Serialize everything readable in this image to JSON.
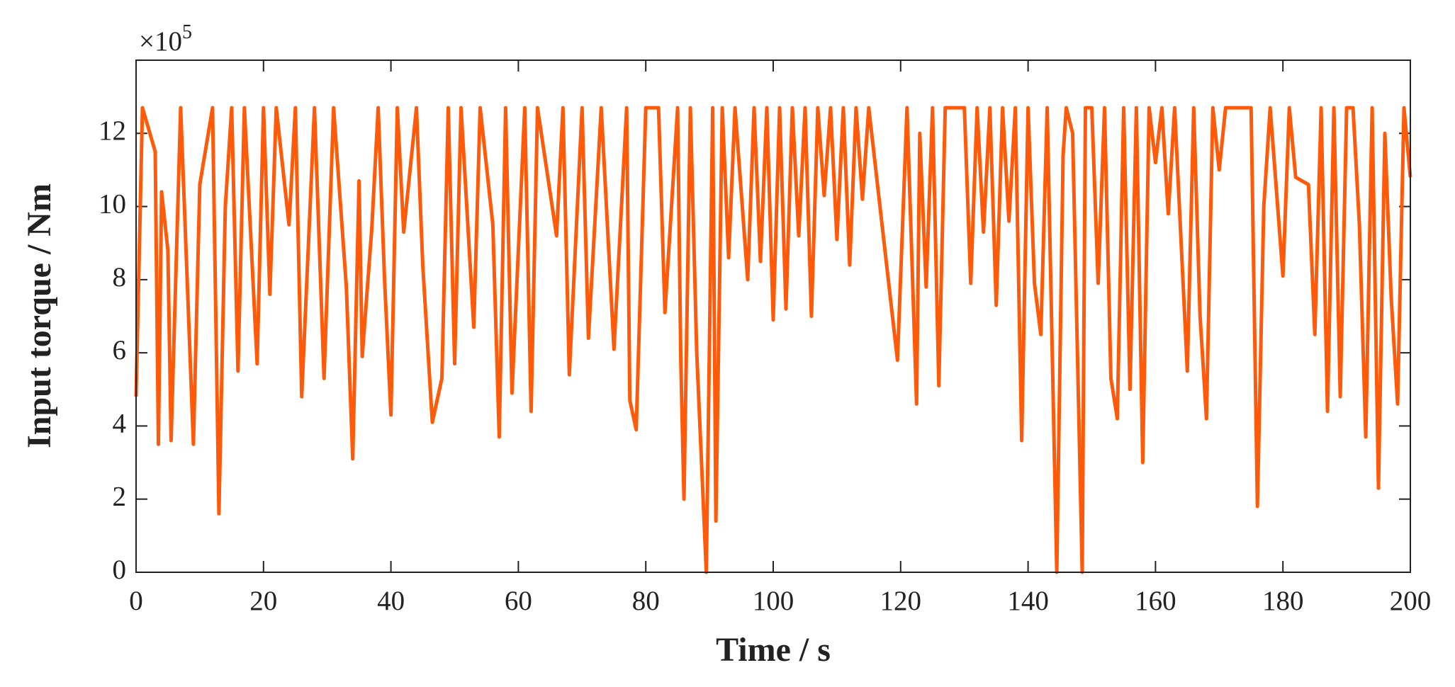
{
  "chart_data": {
    "type": "line",
    "xlabel": "Time / s",
    "ylabel": "Input torque / Nm",
    "y_multiplier": {
      "base": "×10",
      "exponent": "5"
    },
    "xlim": [
      0,
      200
    ],
    "xticks": [
      0,
      20,
      40,
      60,
      80,
      100,
      120,
      140,
      160,
      180,
      200
    ],
    "ylim": [
      0,
      14
    ],
    "yticks": [
      0,
      2,
      4,
      6,
      8,
      10,
      12
    ],
    "grid": false,
    "series": [
      {
        "name": "Input torque",
        "color": "#ff5a0a",
        "x": [
          0,
          1,
          3,
          3.5,
          4,
          5,
          5.5,
          7,
          9,
          10,
          12,
          13,
          14,
          15,
          16,
          17,
          19,
          20,
          21,
          22,
          24,
          25,
          26,
          28,
          29.5,
          31,
          33,
          34,
          35,
          35.5,
          37,
          38,
          39,
          40,
          41,
          42,
          44,
          45,
          46.5,
          48,
          49,
          50,
          51,
          53,
          54,
          56,
          57,
          58,
          59,
          61,
          62,
          63,
          66,
          67,
          68,
          70,
          71,
          73,
          75,
          77,
          77.5,
          78.5,
          80,
          82,
          83,
          85,
          85.5,
          86,
          87,
          88,
          89.5,
          90.5,
          91,
          92,
          93,
          94,
          96,
          97,
          98,
          99,
          100,
          101,
          102,
          103,
          104,
          105,
          106,
          107,
          108,
          109,
          110,
          111,
          112,
          113,
          114,
          115,
          119.5,
          121,
          122.5,
          123,
          124,
          125,
          126,
          127,
          130,
          131,
          132,
          133,
          134,
          135,
          136,
          137,
          138,
          139,
          140,
          141,
          142,
          143,
          144.5,
          145.5,
          146,
          147,
          148.5,
          149,
          150,
          151,
          152,
          153,
          154,
          155,
          156,
          157,
          158,
          159,
          160,
          161,
          162,
          163,
          165,
          166,
          167,
          168,
          169,
          170,
          171,
          175,
          176,
          177,
          178,
          179,
          180,
          181,
          182,
          184,
          185,
          186,
          187,
          188,
          189,
          190,
          191,
          192,
          193,
          194,
          195,
          196,
          197,
          198,
          199,
          200
        ],
        "values": [
          4.8,
          12.7,
          11.5,
          3.5,
          10.4,
          8.8,
          3.6,
          12.7,
          3.5,
          10.6,
          12.7,
          1.6,
          10,
          12.7,
          5.5,
          12.7,
          5.7,
          12.7,
          7.6,
          12.7,
          9.5,
          12.7,
          4.8,
          12.7,
          5.3,
          12.7,
          7.8,
          3.1,
          10.7,
          5.9,
          9.4,
          12.7,
          8,
          4.3,
          12.7,
          9.3,
          12.7,
          8.4,
          4.1,
          5.3,
          12.7,
          5.7,
          12.7,
          6.7,
          12.7,
          9.5,
          3.7,
          12.7,
          4.9,
          12.7,
          4.4,
          12.7,
          9.2,
          12.7,
          5.4,
          12.7,
          6.4,
          12.7,
          6.1,
          12.7,
          4.7,
          3.9,
          12.7,
          12.7,
          7.1,
          12.7,
          5.8,
          2,
          12.7,
          6,
          0,
          12.7,
          1.4,
          12.7,
          8.6,
          12.7,
          8,
          12.7,
          8.5,
          12.7,
          6.9,
          12.7,
          7.2,
          12.7,
          9.2,
          12.7,
          7,
          12.7,
          10.3,
          12.7,
          9.1,
          12.7,
          8.4,
          12.7,
          10.2,
          12.7,
          5.8,
          12.7,
          4.6,
          12,
          7.8,
          12.7,
          5.1,
          12.7,
          12.7,
          7.9,
          12.7,
          9.3,
          12.7,
          7.3,
          12.7,
          9.6,
          12.7,
          3.6,
          12.7,
          7.9,
          6.5,
          12.7,
          0,
          11.4,
          12.7,
          12,
          0,
          12.7,
          12.7,
          7.9,
          12.7,
          5.3,
          4.2,
          12.7,
          5,
          12.7,
          3,
          12.7,
          11.2,
          12.7,
          9.8,
          12.7,
          5.5,
          12.7,
          7,
          4.2,
          12.7,
          11,
          12.7,
          12.7,
          1.8,
          10,
          12.7,
          10.4,
          8.1,
          12.7,
          10.8,
          10.6,
          6.5,
          12.7,
          4.4,
          12.7,
          4.8,
          12.7,
          12.7,
          9.5,
          3.7,
          12.7,
          2.3,
          12,
          7.5,
          4.6,
          12.7,
          10.8
        ]
      }
    ]
  }
}
